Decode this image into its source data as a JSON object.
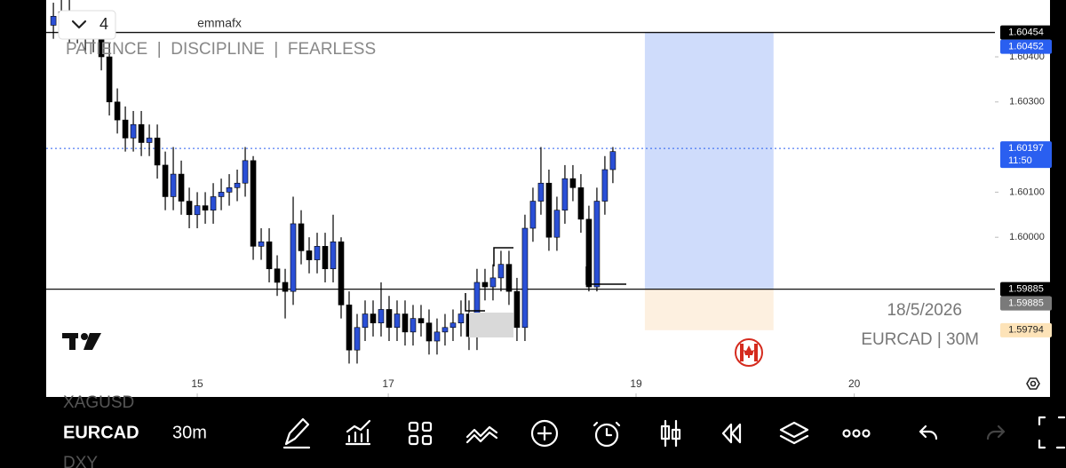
{
  "header": {
    "watermark": "emmafx",
    "counter": "4",
    "motto": "PATIENCE  |  DISCIPLINE  |  FEARLESS"
  },
  "chart_data": {
    "type": "candlestick",
    "up_color": "#2a4fd6",
    "down_color": "#000000",
    "open": [
      1.6047,
      1.6049,
      1.605,
      1.6046,
      1.6047,
      1.6044,
      1.6045,
      1.604,
      1.603,
      1.6026,
      1.6022,
      1.6025,
      1.6021,
      1.6022,
      1.6016,
      1.6009,
      1.6014,
      1.6008,
      1.6005,
      1.6007,
      1.6006,
      1.6009,
      1.601,
      1.6011,
      1.6012,
      1.6017,
      1.5998,
      1.5999,
      1.5993,
      1.599,
      1.5988,
      1.6003,
      1.5997,
      1.5995,
      1.5998,
      1.5993,
      1.5999,
      1.5985,
      1.5975,
      1.598,
      1.5983,
      1.5981,
      1.5984,
      1.598,
      1.5983,
      1.5979,
      1.5982,
      1.5981,
      1.5977,
      1.5979,
      1.598,
      1.5981,
      1.5983,
      1.5978,
      1.599,
      1.5989,
      1.5991,
      1.5994,
      1.5988,
      1.598,
      1.6002,
      1.6008,
      1.6012,
      1.6,
      1.6006,
      1.6013,
      1.6011,
      1.6004,
      1.5989,
      1.6008,
      1.6015
    ],
    "high": [
      1.6052,
      1.6053,
      1.6053,
      1.605,
      1.605,
      1.6048,
      1.6048,
      1.6043,
      1.6033,
      1.6029,
      1.6028,
      1.6028,
      1.6025,
      1.6025,
      1.6019,
      1.602,
      1.6017,
      1.6011,
      1.601,
      1.601,
      1.6012,
      1.6013,
      1.6014,
      1.6015,
      1.602,
      1.6018,
      1.6002,
      1.6002,
      1.5996,
      1.5993,
      1.6009,
      1.6006,
      1.6,
      1.6001,
      1.6001,
      1.6005,
      1.6,
      1.5988,
      1.5983,
      1.5986,
      1.5986,
      1.599,
      1.5987,
      1.5986,
      1.5986,
      1.5985,
      1.5985,
      1.5984,
      1.5982,
      1.5983,
      1.5984,
      1.5986,
      1.5986,
      1.5993,
      1.5993,
      1.5994,
      1.5997,
      1.5997,
      1.5991,
      1.6005,
      1.6011,
      1.602,
      1.6015,
      1.6009,
      1.6016,
      1.6016,
      1.6014,
      1.6007,
      1.6011,
      1.6018,
      1.602
    ],
    "low": [
      1.6044,
      1.6046,
      1.6043,
      1.6043,
      1.6041,
      1.6041,
      1.6037,
      1.6027,
      1.6023,
      1.6019,
      1.6019,
      1.6018,
      1.6018,
      1.6013,
      1.6006,
      1.6006,
      1.6005,
      1.6002,
      1.6002,
      1.6003,
      1.6003,
      1.6006,
      1.6007,
      1.6008,
      1.6009,
      1.5995,
      1.5995,
      1.599,
      1.5987,
      1.5982,
      1.5985,
      1.5994,
      1.5992,
      1.5992,
      1.599,
      1.599,
      1.5982,
      1.5972,
      1.5972,
      1.5977,
      1.5978,
      1.5978,
      1.5977,
      1.5977,
      1.5976,
      1.5976,
      1.5978,
      1.5974,
      1.5974,
      1.5976,
      1.5977,
      1.5978,
      1.5975,
      1.5975,
      1.5986,
      1.5986,
      1.5988,
      1.5985,
      1.5977,
      1.5977,
      1.5999,
      1.6005,
      1.5997,
      1.5997,
      1.6003,
      1.6008,
      1.6001,
      1.5988,
      1.5988,
      1.6005,
      1.6012
    ],
    "close": [
      1.6049,
      1.605,
      1.6046,
      1.6047,
      1.6044,
      1.6045,
      1.604,
      1.603,
      1.6026,
      1.6022,
      1.6025,
      1.6021,
      1.6022,
      1.6016,
      1.6009,
      1.6014,
      1.6008,
      1.6005,
      1.6007,
      1.6006,
      1.6009,
      1.601,
      1.6011,
      1.6012,
      1.6017,
      1.5998,
      1.5999,
      1.5993,
      1.599,
      1.5988,
      1.6003,
      1.5997,
      1.5995,
      1.5998,
      1.5993,
      1.5999,
      1.5985,
      1.5975,
      1.598,
      1.5983,
      1.5981,
      1.5984,
      1.598,
      1.5983,
      1.5979,
      1.5982,
      1.5981,
      1.5977,
      1.5979,
      1.598,
      1.5981,
      1.5983,
      1.5978,
      1.599,
      1.5989,
      1.5991,
      1.5994,
      1.5988,
      1.598,
      1.6002,
      1.6008,
      1.6012,
      1.6,
      1.6006,
      1.6013,
      1.6011,
      1.6004,
      1.5989,
      1.6008,
      1.6015,
      1.6019
    ],
    "xlim": [
      -0.9,
      117.8
    ],
    "ylim": [
      1.59646,
      1.60526
    ],
    "xticks": [
      {
        "value": 18,
        "label": "15"
      },
      {
        "value": 41.9,
        "label": "17"
      },
      {
        "value": 72.9,
        "label": "19"
      },
      {
        "value": 100.2,
        "label": "20"
      }
    ],
    "yticks": [
      {
        "value": 1.604,
        "label": "1.60400"
      },
      {
        "value": 1.603,
        "label": "1.60300"
      },
      {
        "value": 1.601,
        "label": "1.60100"
      },
      {
        "value": 1.6,
        "label": "1.60000"
      }
    ],
    "levels": [
      1.60454,
      1.59885
    ],
    "last_price": 1.60197,
    "countdown": "11:50",
    "price_labels": [
      {
        "value": 1.60454,
        "color": "#000000"
      },
      {
        "value": 1.60452,
        "color": "#2a5ff0"
      },
      {
        "value": 1.60197,
        "color": "#2a5ff0"
      },
      {
        "value": 1.59885,
        "color": "#000000"
      },
      {
        "value": 1.59885,
        "color": "#7a7a7a"
      },
      {
        "value": 1.59794,
        "color": "#fde3b8"
      }
    ],
    "position": {
      "x0": 74,
      "x1": 90.1,
      "target": 1.60454,
      "entry": 1.59885,
      "stop": 1.59794
    }
  },
  "info": {
    "date": "18/5/2026",
    "symbol": "EURCAD | 30M"
  },
  "toolbar": {
    "prev_symbol": "XAGUSD",
    "symbol": "EURCAD",
    "timeframe": "30m",
    "next_symbol": "DXY"
  }
}
